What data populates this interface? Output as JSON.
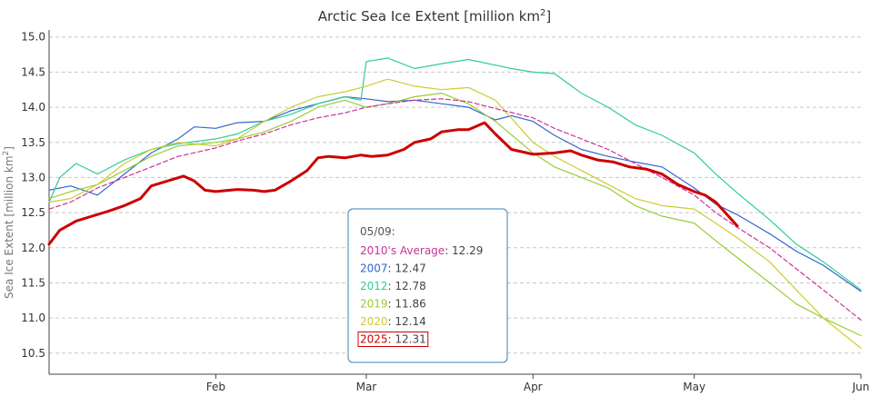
{
  "chart_data": {
    "type": "line",
    "title": "Arctic Sea Ice Extent [million km²]",
    "title_main": "Arctic Sea Ice Extent [million km",
    "title_sup": "2",
    "title_end": "]",
    "ylabel_main": "Sea Ice Extent [million km",
    "ylabel_sup": "2",
    "ylabel_end": "]",
    "x_domain": [
      "01-01",
      "06-01"
    ],
    "x_ticks": [
      {
        "label": "Feb",
        "date": "02-01"
      },
      {
        "label": "Mar",
        "date": "03-01"
      },
      {
        "label": "Apr",
        "date": "04-01"
      },
      {
        "label": "May",
        "date": "05-01"
      },
      {
        "label": "Jun",
        "date": "06-01"
      }
    ],
    "ylim": [
      10.2,
      15.1
    ],
    "y_ticks": [
      10.5,
      11.0,
      11.5,
      12.0,
      12.5,
      13.0,
      13.5,
      14.0,
      14.5,
      15.0
    ],
    "grid": true,
    "series": [
      {
        "name": "2007",
        "color": "#3366cc",
        "width": 1.2,
        "dash": false,
        "points": [
          [
            "01-01",
            12.82
          ],
          [
            "01-05",
            12.88
          ],
          [
            "01-10",
            12.75
          ],
          [
            "01-15",
            13.05
          ],
          [
            "01-20",
            13.35
          ],
          [
            "01-25",
            13.55
          ],
          [
            "01-28",
            13.72
          ],
          [
            "02-01",
            13.7
          ],
          [
            "02-05",
            13.78
          ],
          [
            "02-10",
            13.8
          ],
          [
            "02-15",
            13.95
          ],
          [
            "02-20",
            14.05
          ],
          [
            "02-25",
            14.15
          ],
          [
            "03-01",
            14.12
          ],
          [
            "03-05",
            14.08
          ],
          [
            "03-10",
            14.1
          ],
          [
            "03-15",
            14.05
          ],
          [
            "03-20",
            14.0
          ],
          [
            "03-25",
            13.82
          ],
          [
            "03-28",
            13.88
          ],
          [
            "04-01",
            13.8
          ],
          [
            "04-05",
            13.6
          ],
          [
            "04-10",
            13.4
          ],
          [
            "04-15",
            13.3
          ],
          [
            "04-20",
            13.22
          ],
          [
            "04-25",
            13.15
          ],
          [
            "05-01",
            12.85
          ],
          [
            "05-05",
            12.62
          ],
          [
            "05-09",
            12.47
          ],
          [
            "05-15",
            12.2
          ],
          [
            "05-20",
            11.95
          ],
          [
            "05-25",
            11.75
          ],
          [
            "06-01",
            11.38
          ]
        ]
      },
      {
        "name": "2012",
        "color": "#2ecc99",
        "width": 1.2,
        "dash": false,
        "points": [
          [
            "01-01",
            12.65
          ],
          [
            "01-03",
            13.0
          ],
          [
            "01-06",
            13.2
          ],
          [
            "01-10",
            13.05
          ],
          [
            "01-15",
            13.25
          ],
          [
            "01-20",
            13.4
          ],
          [
            "01-25",
            13.48
          ],
          [
            "02-01",
            13.55
          ],
          [
            "02-05",
            13.62
          ],
          [
            "02-10",
            13.8
          ],
          [
            "02-15",
            13.9
          ],
          [
            "02-20",
            14.05
          ],
          [
            "02-25",
            14.15
          ],
          [
            "02-28",
            14.1
          ],
          [
            "03-01",
            14.65
          ],
          [
            "03-05",
            14.7
          ],
          [
            "03-10",
            14.55
          ],
          [
            "03-15",
            14.62
          ],
          [
            "03-20",
            14.68
          ],
          [
            "03-25",
            14.6
          ],
          [
            "03-28",
            14.55
          ],
          [
            "04-01",
            14.5
          ],
          [
            "04-05",
            14.48
          ],
          [
            "04-10",
            14.2
          ],
          [
            "04-15",
            14.0
          ],
          [
            "04-20",
            13.75
          ],
          [
            "04-25",
            13.6
          ],
          [
            "05-01",
            13.35
          ],
          [
            "05-05",
            13.05
          ],
          [
            "05-09",
            12.78
          ],
          [
            "05-15",
            12.4
          ],
          [
            "05-20",
            12.05
          ],
          [
            "05-25",
            11.8
          ],
          [
            "06-01",
            11.4
          ]
        ]
      },
      {
        "name": "2019",
        "color": "#99cc33",
        "width": 1.2,
        "dash": false,
        "points": [
          [
            "01-01",
            12.7
          ],
          [
            "01-05",
            12.8
          ],
          [
            "01-10",
            12.9
          ],
          [
            "01-15",
            13.1
          ],
          [
            "01-20",
            13.3
          ],
          [
            "01-25",
            13.45
          ],
          [
            "02-01",
            13.5
          ],
          [
            "02-05",
            13.55
          ],
          [
            "02-10",
            13.65
          ],
          [
            "02-15",
            13.8
          ],
          [
            "02-20",
            14.0
          ],
          [
            "02-25",
            14.1
          ],
          [
            "03-01",
            14.0
          ],
          [
            "03-05",
            14.05
          ],
          [
            "03-10",
            14.15
          ],
          [
            "03-15",
            14.2
          ],
          [
            "03-20",
            14.05
          ],
          [
            "03-25",
            13.8
          ],
          [
            "04-01",
            13.35
          ],
          [
            "04-05",
            13.15
          ],
          [
            "04-10",
            13.0
          ],
          [
            "04-15",
            12.85
          ],
          [
            "04-20",
            12.6
          ],
          [
            "04-25",
            12.45
          ],
          [
            "05-01",
            12.35
          ],
          [
            "05-05",
            12.1
          ],
          [
            "05-09",
            11.86
          ],
          [
            "05-15",
            11.5
          ],
          [
            "05-20",
            11.2
          ],
          [
            "05-25",
            11.0
          ],
          [
            "06-01",
            10.75
          ]
        ]
      },
      {
        "name": "2020",
        "color": "#cccc33",
        "width": 1.2,
        "dash": false,
        "points": [
          [
            "01-01",
            12.65
          ],
          [
            "01-05",
            12.7
          ],
          [
            "01-10",
            12.9
          ],
          [
            "01-15",
            13.2
          ],
          [
            "01-20",
            13.4
          ],
          [
            "01-25",
            13.5
          ],
          [
            "02-01",
            13.45
          ],
          [
            "02-05",
            13.55
          ],
          [
            "02-10",
            13.8
          ],
          [
            "02-15",
            14.0
          ],
          [
            "02-20",
            14.15
          ],
          [
            "02-25",
            14.22
          ],
          [
            "03-01",
            14.3
          ],
          [
            "03-05",
            14.4
          ],
          [
            "03-10",
            14.3
          ],
          [
            "03-15",
            14.25
          ],
          [
            "03-20",
            14.28
          ],
          [
            "03-25",
            14.1
          ],
          [
            "04-01",
            13.5
          ],
          [
            "04-05",
            13.3
          ],
          [
            "04-10",
            13.1
          ],
          [
            "04-15",
            12.9
          ],
          [
            "04-20",
            12.7
          ],
          [
            "04-25",
            12.6
          ],
          [
            "05-01",
            12.55
          ],
          [
            "05-05",
            12.35
          ],
          [
            "05-09",
            12.14
          ],
          [
            "05-15",
            11.8
          ],
          [
            "05-20",
            11.4
          ],
          [
            "05-25",
            11.0
          ],
          [
            "06-01",
            10.57
          ]
        ]
      },
      {
        "name": "2010's Average",
        "color": "#cc3399",
        "width": 1.2,
        "dash": true,
        "points": [
          [
            "01-01",
            12.55
          ],
          [
            "01-05",
            12.65
          ],
          [
            "01-10",
            12.85
          ],
          [
            "01-15",
            13.0
          ],
          [
            "01-20",
            13.15
          ],
          [
            "01-25",
            13.3
          ],
          [
            "02-01",
            13.42
          ],
          [
            "02-05",
            13.52
          ],
          [
            "02-10",
            13.62
          ],
          [
            "02-15",
            13.75
          ],
          [
            "02-20",
            13.85
          ],
          [
            "02-25",
            13.92
          ],
          [
            "03-01",
            14.0
          ],
          [
            "03-05",
            14.05
          ],
          [
            "03-10",
            14.1
          ],
          [
            "03-15",
            14.12
          ],
          [
            "03-20",
            14.08
          ],
          [
            "03-25",
            13.98
          ],
          [
            "04-01",
            13.85
          ],
          [
            "04-05",
            13.7
          ],
          [
            "04-10",
            13.55
          ],
          [
            "04-15",
            13.4
          ],
          [
            "04-20",
            13.2
          ],
          [
            "04-25",
            13.0
          ],
          [
            "05-01",
            12.75
          ],
          [
            "05-05",
            12.5
          ],
          [
            "05-09",
            12.29
          ],
          [
            "05-15",
            12.0
          ],
          [
            "05-20",
            11.7
          ],
          [
            "05-25",
            11.4
          ],
          [
            "06-01",
            10.97
          ]
        ]
      },
      {
        "name": "2025",
        "color": "#cc0000",
        "width": 3,
        "dash": false,
        "points": [
          [
            "01-01",
            12.05
          ],
          [
            "01-03",
            12.25
          ],
          [
            "01-06",
            12.38
          ],
          [
            "01-09",
            12.45
          ],
          [
            "01-12",
            12.52
          ],
          [
            "01-15",
            12.6
          ],
          [
            "01-18",
            12.7
          ],
          [
            "01-20",
            12.88
          ],
          [
            "01-23",
            12.95
          ],
          [
            "01-26",
            13.02
          ],
          [
            "01-28",
            12.95
          ],
          [
            "01-30",
            12.82
          ],
          [
            "02-01",
            12.8
          ],
          [
            "02-05",
            12.83
          ],
          [
            "02-08",
            12.82
          ],
          [
            "02-10",
            12.8
          ],
          [
            "02-12",
            12.82
          ],
          [
            "02-15",
            12.95
          ],
          [
            "02-18",
            13.1
          ],
          [
            "02-20",
            13.28
          ],
          [
            "02-22",
            13.3
          ],
          [
            "02-25",
            13.28
          ],
          [
            "02-28",
            13.32
          ],
          [
            "03-02",
            13.3
          ],
          [
            "03-05",
            13.32
          ],
          [
            "03-08",
            13.4
          ],
          [
            "03-10",
            13.5
          ],
          [
            "03-13",
            13.55
          ],
          [
            "03-15",
            13.65
          ],
          [
            "03-18",
            13.68
          ],
          [
            "03-20",
            13.68
          ],
          [
            "03-23",
            13.78
          ],
          [
            "03-25",
            13.62
          ],
          [
            "03-28",
            13.4
          ],
          [
            "04-01",
            13.33
          ],
          [
            "04-05",
            13.35
          ],
          [
            "04-08",
            13.38
          ],
          [
            "04-10",
            13.32
          ],
          [
            "04-13",
            13.25
          ],
          [
            "04-16",
            13.22
          ],
          [
            "04-19",
            13.15
          ],
          [
            "04-22",
            13.12
          ],
          [
            "04-25",
            13.05
          ],
          [
            "04-28",
            12.9
          ],
          [
            "05-01",
            12.8
          ],
          [
            "05-03",
            12.75
          ],
          [
            "05-05",
            12.65
          ],
          [
            "05-07",
            12.48
          ],
          [
            "05-09",
            12.31
          ]
        ]
      }
    ],
    "tooltip": {
      "date": "05/09:",
      "rows": [
        {
          "name": "2010's Average",
          "value": ": 12.29",
          "color": "#cc3399",
          "boxed": false
        },
        {
          "name": "2007",
          "value": ": 12.47",
          "color": "#3366cc",
          "boxed": false
        },
        {
          "name": "2012",
          "value": ": 12.78",
          "color": "#2ecc99",
          "boxed": false
        },
        {
          "name": "2019",
          "value": ": 11.86",
          "color": "#99cc33",
          "boxed": false
        },
        {
          "name": "2020",
          "value": ": 12.14",
          "color": "#cccc33",
          "boxed": false
        },
        {
          "name": "2025",
          "value": ": 12.31",
          "color": "#cc0000",
          "boxed": true
        }
      ]
    }
  }
}
